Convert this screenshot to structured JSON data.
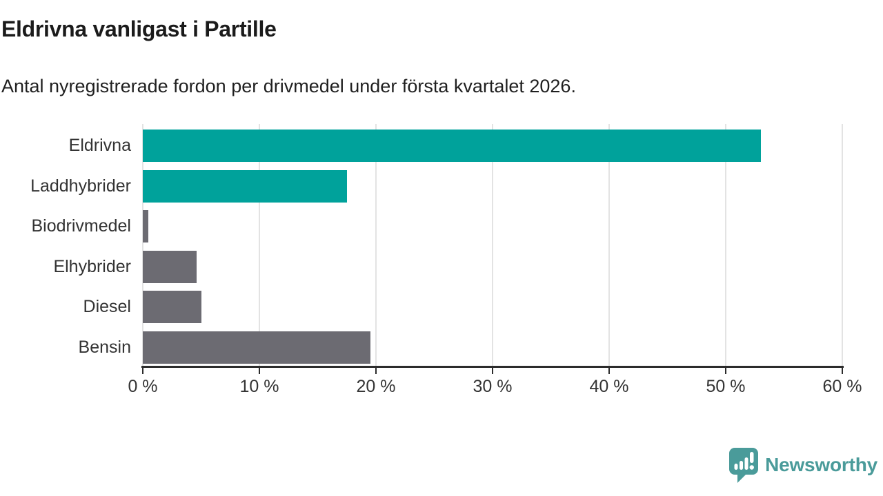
{
  "header": {
    "title": "Eldrivna vanligast i Partille",
    "subtitle": "Antal nyregistrerade fordon per drivmedel under första kvartalet 2026."
  },
  "chart_data": {
    "type": "bar",
    "orientation": "horizontal",
    "title": "Eldrivna vanligast i Partille",
    "subtitle": "Antal nyregistrerade fordon per drivmedel under första kvartalet 2026.",
    "categories": [
      "Eldrivna",
      "Laddhybrider",
      "Biodrivmedel",
      "Elhybrider",
      "Diesel",
      "Bensin"
    ],
    "values": [
      53,
      17.5,
      0.5,
      4.6,
      5,
      19.5
    ],
    "unit": "%",
    "xlim": [
      0,
      60
    ],
    "x_ticks": [
      {
        "value": 0,
        "label": "0 %"
      },
      {
        "value": 10,
        "label": "10 %"
      },
      {
        "value": 20,
        "label": "20 %"
      },
      {
        "value": 30,
        "label": "30 %"
      },
      {
        "value": 40,
        "label": "40 %"
      },
      {
        "value": 50,
        "label": "50 %"
      },
      {
        "value": 60,
        "label": "60 %"
      }
    ],
    "bar_colors": [
      "#00a29b",
      "#00a29b",
      "#6c6b72",
      "#6c6b72",
      "#6c6b72",
      "#6c6b72"
    ],
    "highlight_color": "#00a29b",
    "default_color": "#6c6b72",
    "grid": true,
    "legend": "none"
  },
  "footer": {
    "brand": "Newsworthy",
    "brand_color": "#4a9b9a",
    "logo_icon": "newsworthy-speech-bubble-chart-icon"
  }
}
